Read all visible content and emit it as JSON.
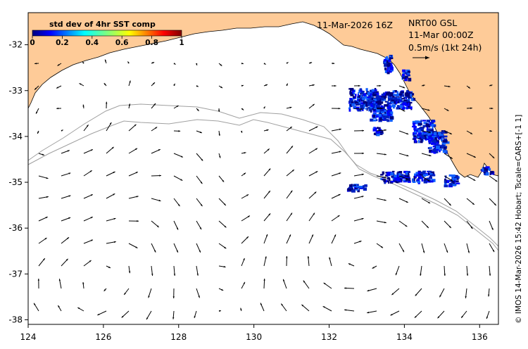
{
  "header": {
    "date_label": "11-Mar-2026 16Z",
    "product_label": "NRT00 GSL",
    "time_label": "11-Mar 00:00Z",
    "scale_label": "0.5m/s (1kt 24h)"
  },
  "colorbar": {
    "title": "std dev of 4hr SST comp",
    "ticks": [
      "0",
      "0.2",
      "0.4",
      "0.6",
      "0.8",
      "1"
    ]
  },
  "credit": "© IMOS 14-Mar-2026 15:42 Hobart; Tscale=CARS+[-1 1]",
  "colors": {
    "land": "#fecb98",
    "isobath": "#a0a0a0",
    "sst_dark": "#00007f",
    "sst_mid": "#0000ff",
    "sst_light": "#1060ff"
  },
  "axes": {
    "x_ticks": [
      "124",
      "126",
      "128",
      "130",
      "132",
      "134",
      "136"
    ],
    "y_ticks": [
      "-32",
      "-33",
      "-34",
      "-35",
      "-36",
      "-37",
      "-38"
    ],
    "lon_range": [
      124,
      136.5
    ],
    "lat_range": [
      -38.1,
      -31.3
    ]
  }
}
